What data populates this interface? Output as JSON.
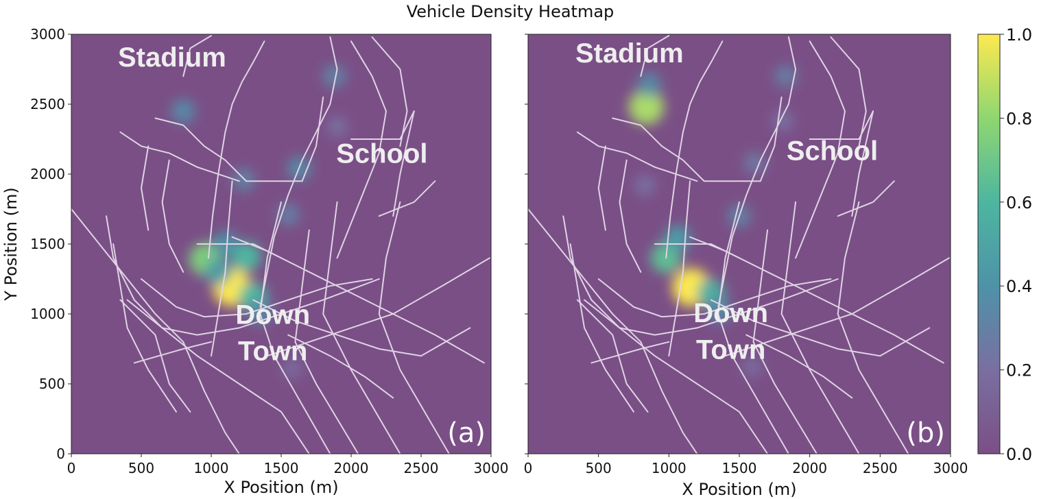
{
  "chart_data": {
    "type": "heatmap",
    "title": "Vehicle Density Heatmap",
    "colormap": "viridis",
    "background_color": "#7a4f86",
    "road_color": "#e0d4e4",
    "panels": [
      {
        "panel_label": "(a)",
        "xlabel": "X Position (m)",
        "ylabel": "Y Position (m)",
        "xlim": [
          0,
          3000
        ],
        "ylim": [
          0,
          3000
        ],
        "xticks": [
          0,
          500,
          1000,
          1500,
          2000,
          2500,
          3000
        ],
        "yticks": [
          0,
          500,
          1000,
          1500,
          2000,
          2500,
          3000
        ],
        "annotations": [
          {
            "text": "Stadium",
            "x": 720,
            "y": 2770
          },
          {
            "text": "School",
            "x": 2220,
            "y": 2080
          },
          {
            "text": "Down",
            "x": 1440,
            "y": 930
          },
          {
            "text": "Town",
            "x": 1440,
            "y": 670
          }
        ],
        "hotspots": [
          {
            "x": 1150,
            "y": 1190,
            "value": 1.0
          },
          {
            "x": 960,
            "y": 1390,
            "value": 0.75
          },
          {
            "x": 1250,
            "y": 1410,
            "value": 0.6
          },
          {
            "x": 1300,
            "y": 1120,
            "value": 0.6
          },
          {
            "x": 1100,
            "y": 1500,
            "value": 0.4
          },
          {
            "x": 1350,
            "y": 1010,
            "value": 0.35
          },
          {
            "x": 1050,
            "y": 1300,
            "value": 0.45
          },
          {
            "x": 800,
            "y": 2450,
            "value": 0.35
          },
          {
            "x": 1630,
            "y": 2040,
            "value": 0.35
          },
          {
            "x": 1230,
            "y": 1960,
            "value": 0.3
          },
          {
            "x": 1550,
            "y": 1710,
            "value": 0.28
          },
          {
            "x": 1880,
            "y": 2700,
            "value": 0.3
          },
          {
            "x": 1900,
            "y": 2340,
            "value": 0.2
          },
          {
            "x": 1580,
            "y": 610,
            "value": 0.18
          }
        ]
      },
      {
        "panel_label": "(b)",
        "xlabel": "X Position (m)",
        "ylabel": "",
        "xlim": [
          0,
          3000
        ],
        "ylim": [
          0,
          3000
        ],
        "xticks": [
          0,
          500,
          1000,
          1500,
          2000,
          2500,
          3000
        ],
        "yticks": [],
        "annotations": [
          {
            "text": "Stadium",
            "x": 720,
            "y": 2800
          },
          {
            "text": "School",
            "x": 2160,
            "y": 2100
          },
          {
            "text": "Down",
            "x": 1440,
            "y": 940
          },
          {
            "text": "Town",
            "x": 1440,
            "y": 680
          }
        ],
        "hotspots": [
          {
            "x": 1160,
            "y": 1190,
            "value": 1.0
          },
          {
            "x": 840,
            "y": 2480,
            "value": 0.85
          },
          {
            "x": 980,
            "y": 1400,
            "value": 0.65
          },
          {
            "x": 1300,
            "y": 1150,
            "value": 0.55
          },
          {
            "x": 1060,
            "y": 1540,
            "value": 0.45
          },
          {
            "x": 1360,
            "y": 1020,
            "value": 0.35
          },
          {
            "x": 860,
            "y": 2640,
            "value": 0.35
          },
          {
            "x": 1500,
            "y": 1700,
            "value": 0.3
          },
          {
            "x": 1610,
            "y": 2080,
            "value": 0.25
          },
          {
            "x": 1830,
            "y": 2700,
            "value": 0.28
          },
          {
            "x": 1810,
            "y": 2380,
            "value": 0.2
          },
          {
            "x": 830,
            "y": 1920,
            "value": 0.2
          },
          {
            "x": 1590,
            "y": 620,
            "value": 0.18
          }
        ]
      }
    ],
    "colorbar": {
      "min": 0.0,
      "max": 1.0,
      "ticks": [
        "0.0",
        "0.2",
        "0.4",
        "0.6",
        "0.8",
        "1.0"
      ]
    }
  }
}
